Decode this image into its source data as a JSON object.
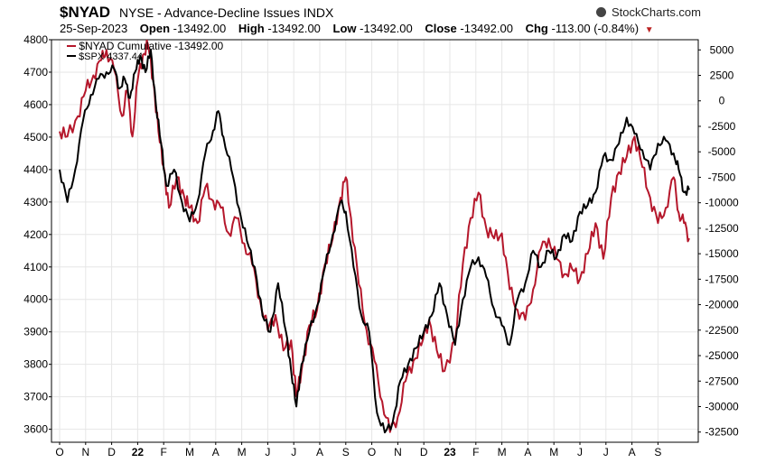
{
  "header": {
    "symbol": "$NYAD",
    "description": "NYSE - Advance-Decline Issues INDX",
    "brand": "StockCharts.com",
    "date": "25-Sep-2023",
    "open_label": "Open",
    "open_value": "-13492.00",
    "high_label": "High",
    "high_value": "-13492.00",
    "low_label": "Low",
    "low_value": "-13492.00",
    "close_label": "Close",
    "close_value": "-13492.00",
    "chg_label": "Chg",
    "chg_value": "-113.00 (-0.84%)"
  },
  "legend": {
    "nyad": "$NYAD Cumulative -13492.00",
    "spx": "$SPX 4337.44"
  },
  "colors": {
    "nyad": "#b5172b",
    "spx": "#000000",
    "grid": "#e6e6e6",
    "axis": "#000000"
  },
  "chart_data": {
    "type": "line",
    "x_ticks": [
      "O",
      "N",
      "D",
      "22",
      "F",
      "M",
      "A",
      "M",
      "J",
      "J",
      "A",
      "S",
      "O",
      "N",
      "D",
      "23",
      "F",
      "M",
      "A",
      "M",
      "J",
      "J",
      "A",
      "S"
    ],
    "left_axis": {
      "ticks": [
        4800,
        4700,
        4600,
        4500,
        4400,
        4300,
        4200,
        4100,
        4000,
        3900,
        3800,
        3700,
        3600
      ],
      "range": [
        3560,
        4800
      ]
    },
    "right_axis": {
      "ticks": [
        5000,
        2500,
        0,
        -2500,
        -5000,
        -7500,
        -10000,
        -12500,
        -15000,
        -17500,
        -20000,
        -22500,
        -25000,
        -27500,
        -30000,
        -32500
      ],
      "range": [
        -33500,
        6000
      ]
    },
    "grid": true,
    "series": [
      {
        "name": "$NYAD Cumulative",
        "axis": "right",
        "points": [
          [
            0,
            -3000
          ],
          [
            0.3,
            -3500
          ],
          [
            0.7,
            -1500
          ],
          [
            1,
            1000
          ],
          [
            1.3,
            2500
          ],
          [
            1.6,
            4000
          ],
          [
            1.8,
            5000
          ],
          [
            2.1,
            3000
          ],
          [
            2.4,
            -1500
          ],
          [
            2.6,
            1000
          ],
          [
            2.8,
            -3500
          ],
          [
            3,
            2000
          ],
          [
            3.2,
            4500
          ],
          [
            3.4,
            5500
          ],
          [
            3.6,
            2000
          ],
          [
            3.8,
            -3000
          ],
          [
            4,
            -6500
          ],
          [
            4.2,
            -10500
          ],
          [
            4.5,
            -7500
          ],
          [
            4.8,
            -9500
          ],
          [
            5,
            -10500
          ],
          [
            5.3,
            -12000
          ],
          [
            5.6,
            -8500
          ],
          [
            5.9,
            -9800
          ],
          [
            6.2,
            -10500
          ],
          [
            6.5,
            -13000
          ],
          [
            6.8,
            -11500
          ],
          [
            7.1,
            -14000
          ],
          [
            7.4,
            -16000
          ],
          [
            7.7,
            -19500
          ],
          [
            8,
            -22500
          ],
          [
            8.3,
            -21000
          ],
          [
            8.6,
            -24500
          ],
          [
            8.9,
            -23500
          ],
          [
            9.1,
            -29000
          ],
          [
            9.3,
            -26500
          ],
          [
            9.6,
            -22000
          ],
          [
            9.9,
            -20500
          ],
          [
            10.2,
            -16000
          ],
          [
            10.5,
            -13500
          ],
          [
            10.8,
            -9500
          ],
          [
            11,
            -7500
          ],
          [
            11.2,
            -11500
          ],
          [
            11.5,
            -18000
          ],
          [
            11.8,
            -22500
          ],
          [
            12.1,
            -25500
          ],
          [
            12.4,
            -29500
          ],
          [
            12.7,
            -32500
          ],
          [
            13,
            -31000
          ],
          [
            13.3,
            -27500
          ],
          [
            13.6,
            -25500
          ],
          [
            13.9,
            -24000
          ],
          [
            14.2,
            -21500
          ],
          [
            14.5,
            -24500
          ],
          [
            14.8,
            -26500
          ],
          [
            15.2,
            -23500
          ],
          [
            15.5,
            -16000
          ],
          [
            15.8,
            -11500
          ],
          [
            16.1,
            -9000
          ],
          [
            16.4,
            -12500
          ],
          [
            16.7,
            -13500
          ],
          [
            17,
            -13000
          ],
          [
            17.3,
            -18500
          ],
          [
            17.6,
            -20500
          ],
          [
            17.9,
            -21500
          ],
          [
            18.2,
            -18500
          ],
          [
            18.5,
            -14500
          ],
          [
            18.8,
            -13500
          ],
          [
            19.1,
            -15500
          ],
          [
            19.4,
            -17000
          ],
          [
            19.7,
            -16500
          ],
          [
            20,
            -17500
          ],
          [
            20.3,
            -15000
          ],
          [
            20.6,
            -12000
          ],
          [
            20.9,
            -15500
          ],
          [
            21.2,
            -9500
          ],
          [
            21.5,
            -7000
          ],
          [
            21.8,
            -5500
          ],
          [
            22.1,
            -3500
          ],
          [
            22.4,
            -6500
          ],
          [
            22.7,
            -9500
          ],
          [
            23,
            -12000
          ],
          [
            23.3,
            -10500
          ],
          [
            23.6,
            -7500
          ],
          [
            23.8,
            -11000
          ],
          [
            24,
            -12000
          ],
          [
            24.2,
            -13492
          ]
        ]
      },
      {
        "name": "$SPX",
        "axis": "left",
        "points": [
          [
            0,
            4400
          ],
          [
            0.3,
            4300
          ],
          [
            0.6,
            4400
          ],
          [
            0.9,
            4550
          ],
          [
            1.2,
            4630
          ],
          [
            1.5,
            4680
          ],
          [
            1.8,
            4700
          ],
          [
            2.1,
            4710
          ],
          [
            2.3,
            4650
          ],
          [
            2.5,
            4680
          ],
          [
            2.7,
            4620
          ],
          [
            2.9,
            4700
          ],
          [
            3.1,
            4750
          ],
          [
            3.3,
            4700
          ],
          [
            3.5,
            4770
          ],
          [
            3.7,
            4600
          ],
          [
            3.9,
            4480
          ],
          [
            4.1,
            4350
          ],
          [
            4.4,
            4400
          ],
          [
            4.7,
            4300
          ],
          [
            5,
            4240
          ],
          [
            5.3,
            4300
          ],
          [
            5.6,
            4450
          ],
          [
            5.9,
            4520
          ],
          [
            6.1,
            4580
          ],
          [
            6.3,
            4500
          ],
          [
            6.6,
            4400
          ],
          [
            6.9,
            4280
          ],
          [
            7.2,
            4180
          ],
          [
            7.5,
            4100
          ],
          [
            7.8,
            3950
          ],
          [
            8.1,
            3900
          ],
          [
            8.4,
            4050
          ],
          [
            8.7,
            3900
          ],
          [
            8.9,
            3780
          ],
          [
            9.1,
            3670
          ],
          [
            9.3,
            3800
          ],
          [
            9.6,
            3900
          ],
          [
            9.9,
            3980
          ],
          [
            10.2,
            4100
          ],
          [
            10.5,
            4200
          ],
          [
            10.8,
            4300
          ],
          [
            11,
            4270
          ],
          [
            11.3,
            4100
          ],
          [
            11.6,
            3950
          ],
          [
            11.9,
            3900
          ],
          [
            12.2,
            3650
          ],
          [
            12.5,
            3590
          ],
          [
            12.8,
            3620
          ],
          [
            13.1,
            3750
          ],
          [
            13.4,
            3800
          ],
          [
            13.7,
            3850
          ],
          [
            14,
            3900
          ],
          [
            14.3,
            3950
          ],
          [
            14.6,
            4050
          ],
          [
            14.9,
            3950
          ],
          [
            15.2,
            3860
          ],
          [
            15.5,
            4000
          ],
          [
            15.8,
            4100
          ],
          [
            16.1,
            4130
          ],
          [
            16.4,
            4070
          ],
          [
            16.7,
            3970
          ],
          [
            17,
            3920
          ],
          [
            17.3,
            3860
          ],
          [
            17.6,
            4000
          ],
          [
            17.9,
            4050
          ],
          [
            18.2,
            4150
          ],
          [
            18.5,
            4100
          ],
          [
            18.8,
            4150
          ],
          [
            19.1,
            4130
          ],
          [
            19.4,
            4200
          ],
          [
            19.7,
            4180
          ],
          [
            20,
            4270
          ],
          [
            20.3,
            4290
          ],
          [
            20.6,
            4330
          ],
          [
            20.9,
            4440
          ],
          [
            21.2,
            4430
          ],
          [
            21.5,
            4480
          ],
          [
            21.8,
            4560
          ],
          [
            22.1,
            4510
          ],
          [
            22.4,
            4460
          ],
          [
            22.7,
            4400
          ],
          [
            23,
            4480
          ],
          [
            23.3,
            4490
          ],
          [
            23.6,
            4450
          ],
          [
            23.8,
            4400
          ],
          [
            24,
            4330
          ],
          [
            24.2,
            4337.44
          ]
        ]
      }
    ]
  }
}
